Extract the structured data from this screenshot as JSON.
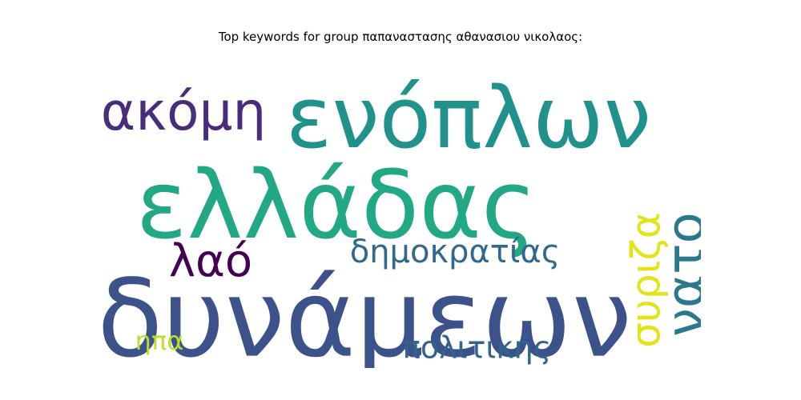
{
  "chart_data": {
    "type": "wordcloud",
    "title": "Top keywords for group παπαναστασης αθανασιου νικολαος:",
    "words": [
      {
        "text": "ενόπλων",
        "weight": 0.82,
        "color": "#21918c"
      },
      {
        "text": "ελλάδας",
        "weight": 1.0,
        "color": "#22a884"
      },
      {
        "text": "δυνάμεων",
        "weight": 0.95,
        "color": "#3b528b"
      },
      {
        "text": "ακόμη",
        "weight": 0.45,
        "color": "#472d7b"
      },
      {
        "text": "σ­υριζα",
        "weight": 0.38,
        "color": "#e2e418"
      },
      {
        "text": "νατο",
        "weight": 0.4,
        "color": "#2a788e"
      },
      {
        "text": "λαό",
        "weight": 0.36,
        "color": "#440154"
      },
      {
        "text": "δημοκρατίας",
        "weight": 0.3,
        "color": "#31688e"
      },
      {
        "text": "πολιτικής",
        "weight": 0.26,
        "color": "#33638d"
      },
      {
        "text": "ηπα",
        "weight": 0.2,
        "color": "#bddf26"
      }
    ]
  }
}
